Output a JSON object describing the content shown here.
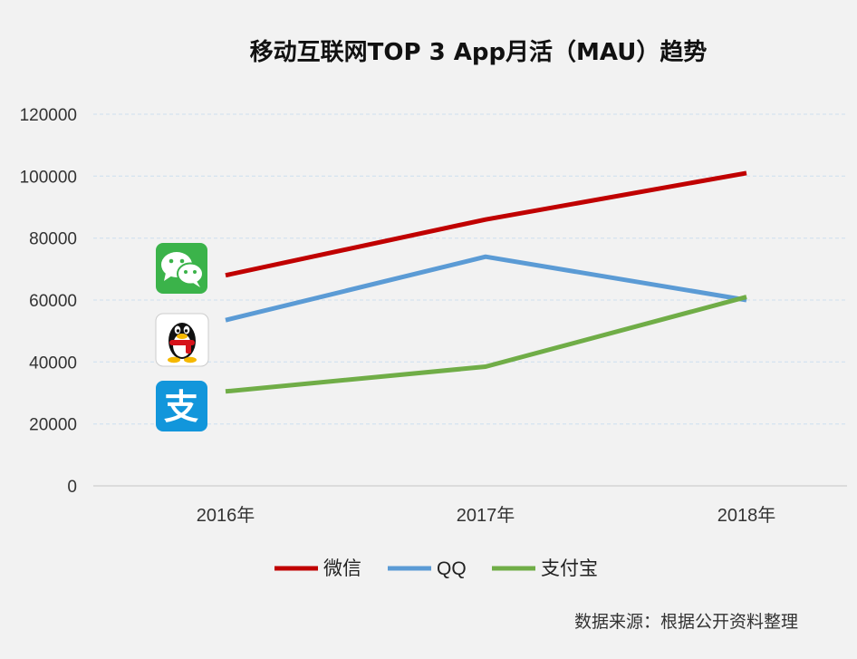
{
  "chart_data": {
    "type": "line",
    "title": "移动互联网TOP 3 App月活（MAU）趋势",
    "categories": [
      "2016年",
      "2017年",
      "2018年"
    ],
    "ylim": [
      0,
      120000
    ],
    "yticks": [
      "0",
      "20000",
      "40000",
      "60000",
      "80000",
      "100000",
      "120000"
    ],
    "grid": "horizontal dashed",
    "legend_position": "bottom",
    "series": [
      {
        "name": "微信",
        "values": [
          68000,
          86000,
          101000
        ],
        "color": "#c00000",
        "icon": "wechat-icon"
      },
      {
        "name": "QQ",
        "values": [
          53500,
          74000,
          60000
        ],
        "color": "#5b9bd5",
        "icon": "qq-icon"
      },
      {
        "name": "支付宝",
        "values": [
          30500,
          38500,
          61000
        ],
        "color": "#70ad47",
        "icon": "alipay-icon"
      }
    ],
    "source": "数据来源：根据公开资料整理"
  }
}
